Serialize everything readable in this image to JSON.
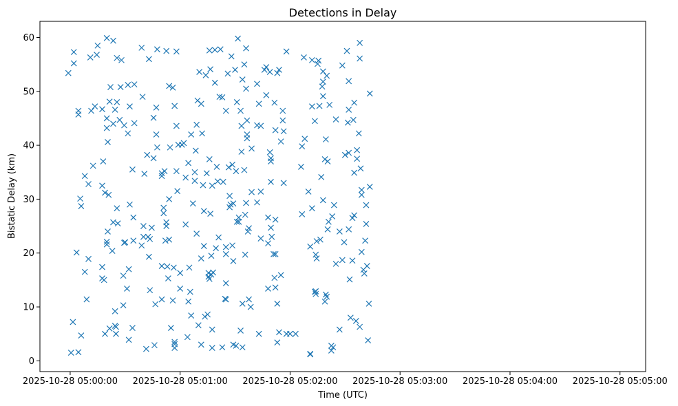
{
  "chart_data": {
    "type": "scatter",
    "title": "Detections in Delay",
    "xlabel": "Time (UTC)",
    "ylabel": "Bistatic Delay (km)",
    "marker": "x",
    "color": "#1f77b4",
    "grid": false,
    "legend": "none",
    "x_unit": "seconds after 2025-10-28 05:00:00",
    "xlim": [
      -16.5,
      314
    ],
    "ylim": [
      -2,
      63
    ],
    "xticks": [
      {
        "value": 0,
        "label": "2025-10-28 05:00:00"
      },
      {
        "value": 60,
        "label": "2025-10-28 05:01:00"
      },
      {
        "value": 120,
        "label": "2025-10-28 05:02:00"
      },
      {
        "value": 180,
        "label": "2025-10-28 05:03:00"
      },
      {
        "value": 240,
        "label": "2025-10-28 05:04:00"
      },
      {
        "value": 300,
        "label": "2025-10-28 05:05:00"
      }
    ],
    "yticks": [
      {
        "value": 0,
        "label": "0"
      },
      {
        "value": 10,
        "label": "10"
      },
      {
        "value": 20,
        "label": "20"
      },
      {
        "value": 30,
        "label": "30"
      },
      {
        "value": 40,
        "label": "40"
      },
      {
        "value": 50,
        "label": "50"
      },
      {
        "value": 60,
        "label": "60"
      }
    ],
    "points": [
      [
        -1,
        53.4
      ],
      [
        0.5,
        1.5
      ],
      [
        1.5,
        7.2
      ],
      [
        2,
        57.3
      ],
      [
        2,
        55.2
      ],
      [
        3.5,
        20.1
      ],
      [
        4.5,
        45.7
      ],
      [
        4.5,
        46.4
      ],
      [
        4.5,
        1.6
      ],
      [
        5.5,
        30.1
      ],
      [
        6,
        28.7
      ],
      [
        6,
        4.7
      ],
      [
        8,
        34.3
      ],
      [
        8,
        16.5
      ],
      [
        9,
        11.4
      ],
      [
        10,
        32.8
      ],
      [
        10,
        18.9
      ],
      [
        11,
        56.3
      ],
      [
        11.5,
        46.4
      ],
      [
        12.5,
        36.2
      ],
      [
        13.5,
        47.2
      ],
      [
        14.5,
        56.8
      ],
      [
        15,
        58.5
      ],
      [
        17.5,
        46.7
      ],
      [
        17.5,
        32.5
      ],
      [
        17.5,
        17.4
      ],
      [
        17.5,
        15.3
      ],
      [
        18,
        37
      ],
      [
        18.5,
        15
      ],
      [
        19,
        5
      ],
      [
        19,
        31.2
      ],
      [
        20,
        59.9
      ],
      [
        20,
        45
      ],
      [
        20,
        43.2
      ],
      [
        20,
        22.1
      ],
      [
        20,
        21.6
      ],
      [
        20.5,
        40.6
      ],
      [
        20.5,
        24
      ],
      [
        21,
        30.8
      ],
      [
        21.5,
        48.1
      ],
      [
        21.5,
        6
      ],
      [
        22,
        50.8
      ],
      [
        23,
        20.4
      ],
      [
        23.5,
        44
      ],
      [
        23.5,
        59.4
      ],
      [
        23.5,
        25.7
      ],
      [
        24.5,
        46.6
      ],
      [
        24.5,
        9.2
      ],
      [
        24.5,
        6.5
      ],
      [
        25,
        6.3
      ],
      [
        25,
        5
      ],
      [
        25.5,
        48
      ],
      [
        25.5,
        56.2
      ],
      [
        25.5,
        28.3
      ],
      [
        26,
        25.5
      ],
      [
        27,
        44.7
      ],
      [
        27.5,
        50.8
      ],
      [
        28,
        55.8
      ],
      [
        29,
        10.3
      ],
      [
        29,
        15.8
      ],
      [
        29.5,
        43.7
      ],
      [
        29.5,
        21.9
      ],
      [
        30,
        22
      ],
      [
        31,
        13.4
      ],
      [
        31.5,
        42.2
      ],
      [
        31.5,
        51.2
      ],
      [
        32,
        3.9
      ],
      [
        32,
        17
      ],
      [
        32.5,
        47.2
      ],
      [
        32.5,
        29
      ],
      [
        34,
        6.1
      ],
      [
        34,
        35.5
      ],
      [
        34.5,
        26.6
      ],
      [
        34.5,
        22.3
      ],
      [
        35,
        51.3
      ],
      [
        35,
        44.1
      ],
      [
        39,
        58.1
      ],
      [
        39,
        21.4
      ],
      [
        39.5,
        49
      ],
      [
        40,
        23
      ],
      [
        40,
        25
      ],
      [
        40.5,
        34.7
      ],
      [
        41.5,
        2.2
      ],
      [
        42,
        38.2
      ],
      [
        42.5,
        23
      ],
      [
        43,
        56
      ],
      [
        43,
        19.3
      ],
      [
        43.5,
        22.6
      ],
      [
        43.5,
        13.1
      ],
      [
        44.5,
        24.7
      ],
      [
        45.5,
        37.6
      ],
      [
        45.5,
        45.1
      ],
      [
        46,
        2.9
      ],
      [
        46.5,
        10.5
      ],
      [
        47,
        47
      ],
      [
        47,
        42
      ],
      [
        47.5,
        57.8
      ],
      [
        47.5,
        39.6
      ],
      [
        50,
        11.4
      ],
      [
        50,
        17.6
      ],
      [
        50,
        34.3
      ],
      [
        50,
        34.8
      ],
      [
        51,
        27.4
      ],
      [
        51,
        28.4
      ],
      [
        51.5,
        35.2
      ],
      [
        52,
        22.3
      ],
      [
        52.5,
        57.5
      ],
      [
        52.5,
        25.7
      ],
      [
        52.5,
        25
      ],
      [
        53,
        17.5
      ],
      [
        53.5,
        15.3
      ],
      [
        54,
        22.5
      ],
      [
        54,
        51
      ],
      [
        54,
        30
      ],
      [
        54.5,
        39.6
      ],
      [
        55,
        6.1
      ],
      [
        56,
        50.7
      ],
      [
        56,
        11.2
      ],
      [
        56.5,
        17.3
      ],
      [
        57,
        3.5
      ],
      [
        57,
        2.4
      ],
      [
        57,
        3.1
      ],
      [
        57,
        47.3
      ],
      [
        58,
        35.2
      ],
      [
        58,
        57.4
      ],
      [
        58,
        43.6
      ],
      [
        58.5,
        31.5
      ],
      [
        59,
        40.1
      ],
      [
        60,
        13.4
      ],
      [
        60,
        16.3
      ],
      [
        61,
        40.1
      ],
      [
        62,
        40.4
      ],
      [
        63,
        25.3
      ],
      [
        63,
        34
      ],
      [
        64,
        4.4
      ],
      [
        64.5,
        36.7
      ],
      [
        64.5,
        11
      ],
      [
        65,
        17.3
      ],
      [
        65.5,
        12.8
      ],
      [
        66,
        8.4
      ],
      [
        66,
        42
      ],
      [
        67,
        29.2
      ],
      [
        68,
        33.4
      ],
      [
        68,
        35
      ],
      [
        68.5,
        39
      ],
      [
        69,
        23.6
      ],
      [
        69,
        43.8
      ],
      [
        69.5,
        48.3
      ],
      [
        70,
        6.6
      ],
      [
        70.5,
        53.6
      ],
      [
        71.5,
        19
      ],
      [
        71.5,
        47.7
      ],
      [
        71.5,
        3
      ],
      [
        72,
        42.2
      ],
      [
        72.5,
        32.6
      ],
      [
        73,
        27.8
      ],
      [
        73,
        21.3
      ],
      [
        73.5,
        8.2
      ],
      [
        74,
        53
      ],
      [
        74.5,
        34.8
      ],
      [
        75,
        8.6
      ],
      [
        75.5,
        15.6
      ],
      [
        75.5,
        16.3
      ],
      [
        76,
        57.6
      ],
      [
        76,
        37.4
      ],
      [
        76,
        15.2
      ],
      [
        76.5,
        27.3
      ],
      [
        76.5,
        54.1
      ],
      [
        77,
        16
      ],
      [
        77,
        19.5
      ],
      [
        77.5,
        32.5
      ],
      [
        77.5,
        2.4
      ],
      [
        77.5,
        5.8
      ],
      [
        78,
        16.4
      ],
      [
        79,
        57.7
      ],
      [
        79,
        51.6
      ],
      [
        79.5,
        20.9
      ],
      [
        80,
        36
      ],
      [
        80.5,
        33.3
      ],
      [
        81,
        22.9
      ],
      [
        81.5,
        49
      ],
      [
        82,
        57.8
      ],
      [
        83,
        2.5
      ],
      [
        83,
        48.9
      ],
      [
        83.5,
        33.2
      ],
      [
        84.5,
        11.5
      ],
      [
        85,
        46.4
      ],
      [
        85,
        11.4
      ],
      [
        85,
        14.4
      ],
      [
        85,
        19.8
      ],
      [
        85,
        21.1
      ],
      [
        86,
        53.3
      ],
      [
        86.5,
        35.9
      ],
      [
        87,
        30.6
      ],
      [
        87,
        28.5
      ],
      [
        87.5,
        29
      ],
      [
        88,
        56.5
      ],
      [
        88.5,
        21.4
      ],
      [
        88.5,
        36.4
      ],
      [
        89,
        29.2
      ],
      [
        89,
        18.5
      ],
      [
        89,
        3
      ],
      [
        90,
        54
      ],
      [
        90.5,
        35.2
      ],
      [
        90.5,
        2.8
      ],
      [
        91,
        25.8
      ],
      [
        91,
        48
      ],
      [
        91.5,
        59.8
      ],
      [
        92,
        26.6
      ],
      [
        92,
        25.8
      ],
      [
        93,
        46.4
      ],
      [
        93,
        5.6
      ],
      [
        93.5,
        38.8
      ],
      [
        93.5,
        43.6
      ],
      [
        94,
        52.2
      ],
      [
        94,
        10.6
      ],
      [
        94,
        2.5
      ],
      [
        95,
        55
      ],
      [
        95,
        35.4
      ],
      [
        95.5,
        19.7
      ],
      [
        95.5,
        27.1
      ],
      [
        96,
        58
      ],
      [
        96,
        50.5
      ],
      [
        96,
        29.3
      ],
      [
        96.5,
        44.6
      ],
      [
        96.5,
        42
      ],
      [
        96.5,
        41.3
      ],
      [
        97,
        24
      ],
      [
        97.5,
        24.6
      ],
      [
        97.5,
        11.4
      ],
      [
        98.5,
        10
      ],
      [
        99,
        39.4
      ],
      [
        99,
        31.3
      ],
      [
        102,
        29.4
      ],
      [
        102,
        51.4
      ],
      [
        102,
        43.7
      ],
      [
        103,
        47.7
      ],
      [
        103,
        5
      ],
      [
        104,
        31.4
      ],
      [
        104,
        43.6
      ],
      [
        104,
        22.7
      ],
      [
        106,
        54
      ],
      [
        107,
        54.5
      ],
      [
        107,
        49.3
      ],
      [
        108,
        13.4
      ],
      [
        108,
        26.6
      ],
      [
        108,
        21.8
      ],
      [
        109,
        38.7
      ],
      [
        109,
        53.6
      ],
      [
        109.5,
        37
      ],
      [
        109.5,
        37.6
      ],
      [
        109.5,
        33.2
      ],
      [
        109.5,
        24.7
      ],
      [
        110,
        23
      ],
      [
        111,
        19.8
      ],
      [
        111.5,
        47.9
      ],
      [
        111.5,
        15.4
      ],
      [
        112,
        42.8
      ],
      [
        112,
        13.6
      ],
      [
        112,
        19.8
      ],
      [
        112,
        26.2
      ],
      [
        113,
        3.4
      ],
      [
        113,
        10.6
      ],
      [
        113,
        53.4
      ],
      [
        114,
        54
      ],
      [
        114,
        5.3
      ],
      [
        115,
        40.7
      ],
      [
        115,
        15.9
      ],
      [
        116,
        46.4
      ],
      [
        116,
        44.6
      ],
      [
        116.5,
        42.6
      ],
      [
        116.5,
        33
      ],
      [
        118,
        5
      ],
      [
        118,
        57.4
      ],
      [
        120,
        5
      ],
      [
        123,
        5
      ],
      [
        126,
        36
      ],
      [
        126.5,
        27.2
      ],
      [
        126.5,
        39.8
      ],
      [
        127.5,
        56.3
      ],
      [
        128,
        41.2
      ],
      [
        130,
        31.4
      ],
      [
        131,
        21.2
      ],
      [
        131,
        1.3
      ],
      [
        131,
        1.2
      ],
      [
        132,
        55.8
      ],
      [
        132,
        28.3
      ],
      [
        132,
        47.2
      ],
      [
        133.5,
        44.5
      ],
      [
        133.5,
        12.8
      ],
      [
        134,
        19.7
      ],
      [
        134,
        12.4
      ],
      [
        134,
        12.9
      ],
      [
        134.5,
        22.2
      ],
      [
        134.5,
        19
      ],
      [
        135,
        55.1
      ],
      [
        135.5,
        55.7
      ],
      [
        136,
        47.3
      ],
      [
        136.5,
        22.5
      ],
      [
        137,
        34.1
      ],
      [
        137.5,
        50.9
      ],
      [
        138,
        53.7
      ],
      [
        138,
        51.8
      ],
      [
        138,
        49.1
      ],
      [
        138,
        29.8
      ],
      [
        139,
        37.4
      ],
      [
        139,
        11
      ],
      [
        139.5,
        41.1
      ],
      [
        139.5,
        12.3
      ],
      [
        140,
        52.9
      ],
      [
        140,
        11.9
      ],
      [
        140.5,
        37
      ],
      [
        140.5,
        24.4
      ],
      [
        141,
        25.8
      ],
      [
        141.5,
        47.5
      ],
      [
        142.5,
        1.9
      ],
      [
        142.5,
        2.8
      ],
      [
        143,
        26.8
      ],
      [
        143.5,
        2.5
      ],
      [
        144,
        28.9
      ],
      [
        145,
        18
      ],
      [
        145,
        44.8
      ],
      [
        147,
        5.8
      ],
      [
        147,
        24
      ],
      [
        148.5,
        18.7
      ],
      [
        148.5,
        54.8
      ],
      [
        149.5,
        22
      ],
      [
        150,
        38.2
      ],
      [
        151,
        57.5
      ],
      [
        151.5,
        44.2
      ],
      [
        152,
        24.4
      ],
      [
        152,
        38.6
      ],
      [
        152,
        51.9
      ],
      [
        152,
        46.6
      ],
      [
        152.5,
        15.1
      ],
      [
        153,
        8
      ],
      [
        154,
        26.5
      ],
      [
        154,
        18.6
      ],
      [
        154.5,
        44.7
      ],
      [
        155,
        47.9
      ],
      [
        155,
        34.9
      ],
      [
        155,
        27
      ],
      [
        156,
        7.4
      ],
      [
        156.5,
        37.5
      ],
      [
        156.5,
        39.1
      ],
      [
        157.5,
        42.2
      ],
      [
        158,
        59
      ],
      [
        158,
        56.1
      ],
      [
        158,
        6.3
      ],
      [
        158.5,
        35.7
      ],
      [
        159,
        20.2
      ],
      [
        159,
        31.7
      ],
      [
        159,
        30.8
      ],
      [
        160,
        16.9
      ],
      [
        160.5,
        16.2
      ],
      [
        161,
        22.3
      ],
      [
        161.5,
        28.9
      ],
      [
        161.5,
        25.4
      ],
      [
        162,
        17.6
      ],
      [
        162.5,
        3.8
      ],
      [
        163,
        10.6
      ],
      [
        163.5,
        49.6
      ],
      [
        163.5,
        32.3
      ]
    ]
  }
}
